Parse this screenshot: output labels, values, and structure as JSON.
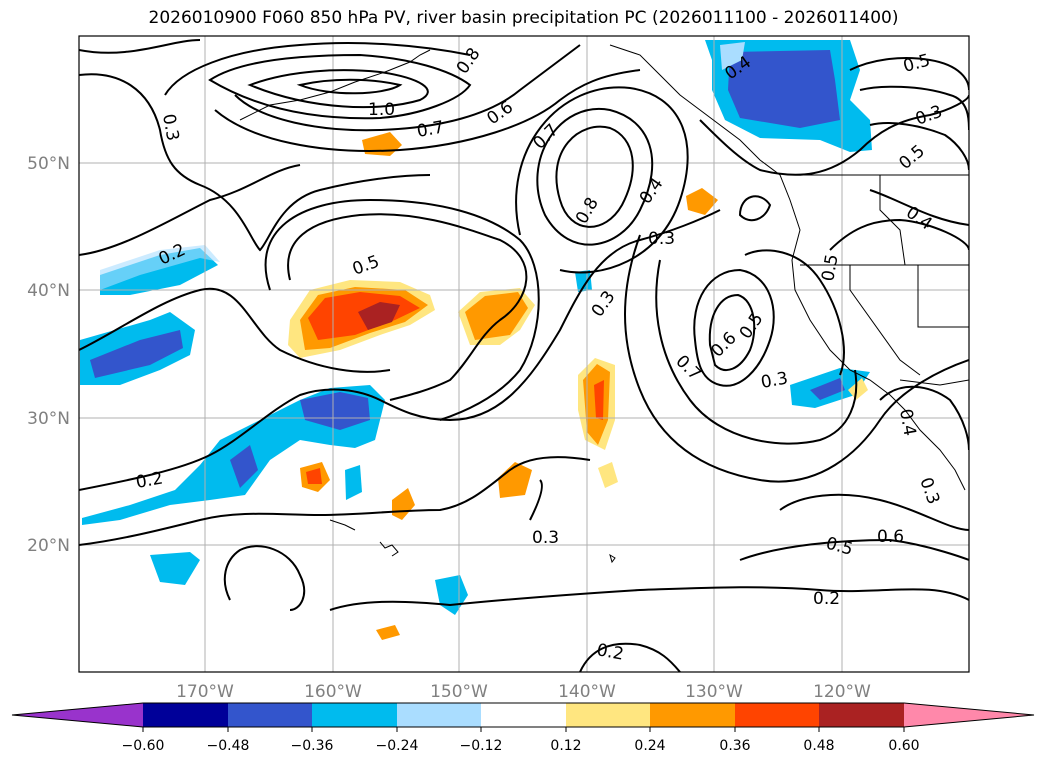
{
  "title": "2026010900 F060 850 hPa PV, river basin precipitation PC (2026011100 - 2026011400)",
  "map": {
    "lat_labels": [
      "50°N",
      "40°N",
      "30°N",
      "20°N"
    ],
    "lat_values": [
      50,
      40,
      30,
      20
    ],
    "lon_labels": [
      "170°W",
      "160°W",
      "150°W",
      "140°W",
      "130°W",
      "120°W"
    ],
    "lon_values": [
      -170,
      -160,
      -150,
      -140,
      -130,
      -120
    ],
    "extent": {
      "lon_min": -180,
      "lon_max": -110,
      "lat_min": 10,
      "lat_max": 60
    },
    "contour_labels": [
      "0.3",
      "1.0",
      "0.8",
      "0.7",
      "0.6",
      "0.7",
      "0.8",
      "0.4",
      "0.3",
      "0.4",
      "0.5",
      "0.3",
      "0.5",
      "0.4",
      "0.2",
      "0.5",
      "0.3",
      "0.5",
      "0.6",
      "0.7",
      "0.3",
      "0.5",
      "0.3",
      "0.2",
      "0.3",
      "0.5",
      "0.6",
      "0.2",
      "0.2",
      "0.4"
    ],
    "grid": true
  },
  "colorbar": {
    "ticks": [
      "−0.60",
      "−0.48",
      "−0.36",
      "−0.24",
      "−0.12",
      "0.12",
      "0.24",
      "0.36",
      "0.48",
      "0.60"
    ],
    "colors": [
      "#9933cc",
      "#000099",
      "#3355cc",
      "#00bbee",
      "#aaddff",
      "#ffffff",
      "#ffe680",
      "#ff9900",
      "#ff4400",
      "#aa2222",
      "#ff88aa"
    ]
  }
}
